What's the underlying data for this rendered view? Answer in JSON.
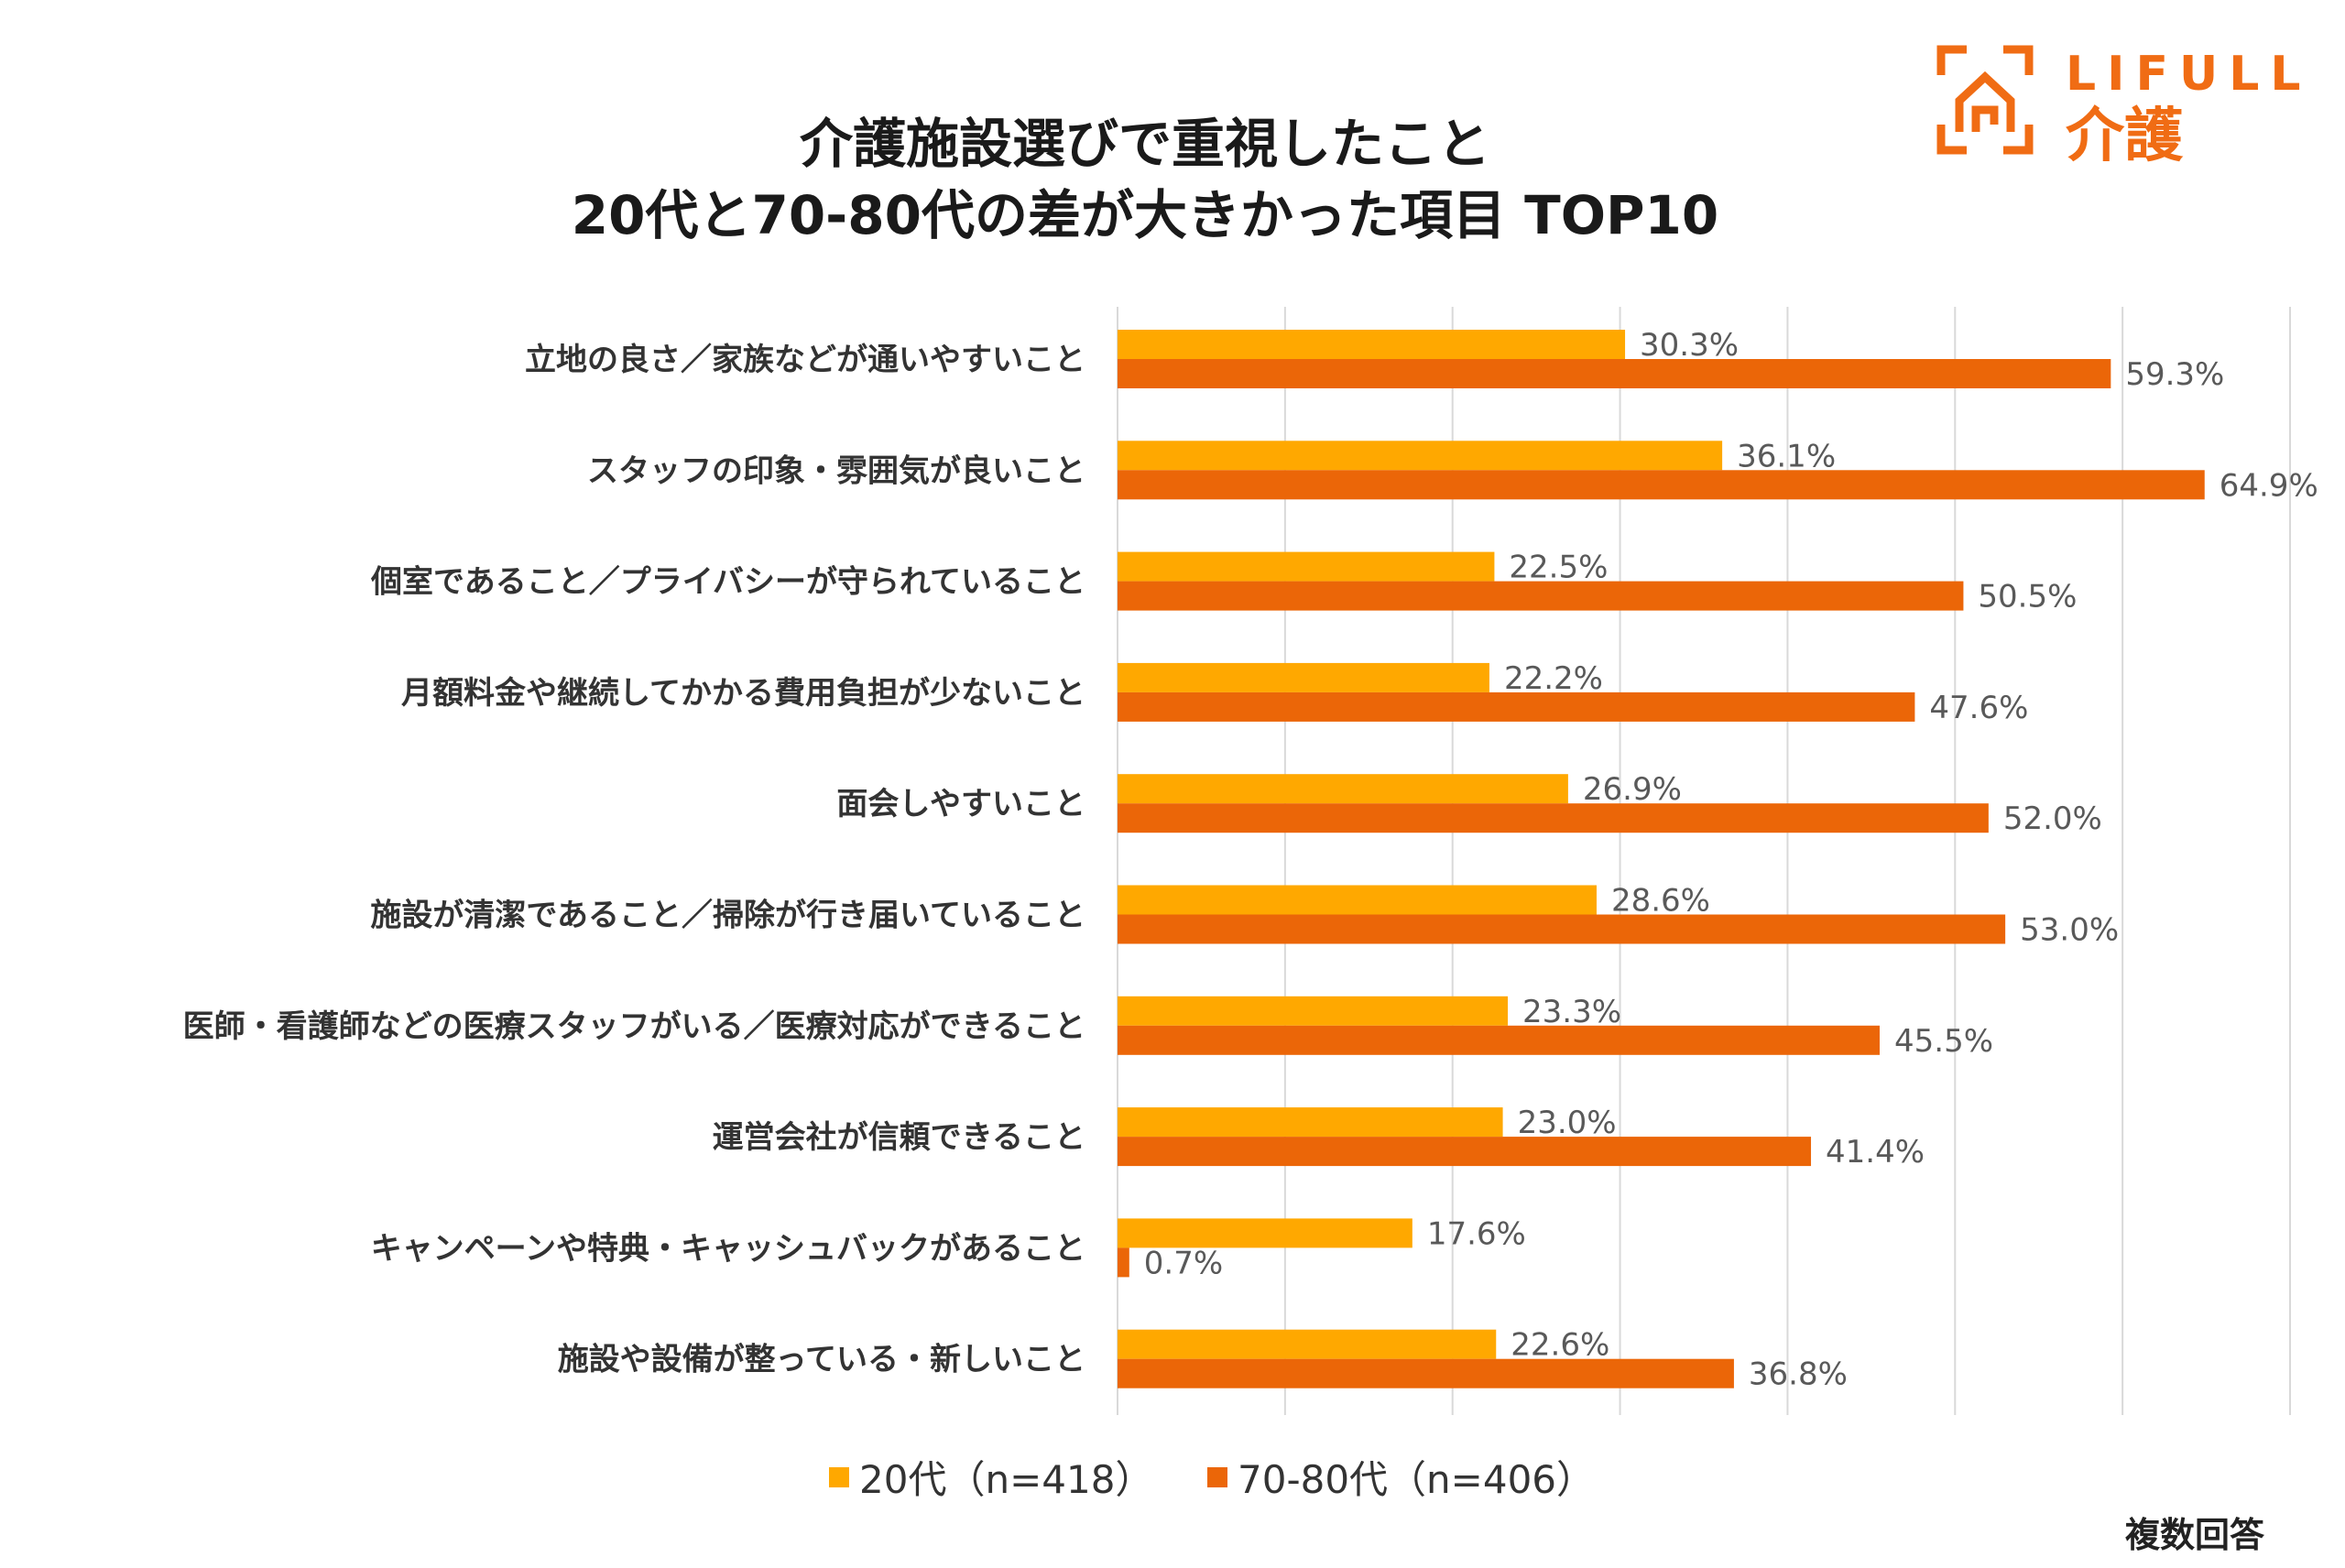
{
  "title_line1": "介護施設選びで重視したこと",
  "title_line2": "20代と70-80代の差が大きかった項目 TOP10",
  "logo": {
    "brand": "LIFULL",
    "service": "介護",
    "icon": "house-icon",
    "color": "#F06C14"
  },
  "footnote": "複数回答",
  "colors": {
    "series1": "#FFA800",
    "series2": "#EB6608",
    "grid": "#D9D9D9",
    "label": "#595959"
  },
  "chart_data": {
    "type": "bar",
    "orientation": "horizontal",
    "categories": [
      "立地の良さ／家族などが通いやすいこと",
      "スタッフの印象・雰囲気が良いこと",
      "個室であること／プライバシーが守られていること",
      "月額料金や継続してかかる費用負担が少ないこと",
      "面会しやすいこと",
      "施設が清潔であること／掃除が行き届いていること",
      "医師・看護師などの医療スタッフがいる／医療対応ができること",
      "運営会社が信頼できること",
      "キャンペーンや特典・キャッシュバックがあること",
      "施設や設備が整っている・新しいこと"
    ],
    "series": [
      {
        "name": "20代（n=418）",
        "values": [
          30.3,
          36.1,
          22.5,
          22.2,
          26.9,
          28.6,
          23.3,
          23.0,
          17.6,
          22.6
        ],
        "labels": [
          "30.3%",
          "36.1%",
          "22.5%",
          "22.2%",
          "26.9%",
          "28.6%",
          "23.3%",
          "23.0%",
          "17.6%",
          "22.6%"
        ]
      },
      {
        "name": "70-80代（n=406）",
        "values": [
          59.3,
          64.9,
          50.5,
          47.6,
          52.0,
          53.0,
          45.5,
          41.4,
          0.7,
          36.8
        ],
        "labels": [
          "59.3%",
          "64.9%",
          "50.5%",
          "47.6%",
          "52.0%",
          "53.0%",
          "45.5%",
          "41.4%",
          "0.7%",
          "36.8%"
        ]
      }
    ],
    "xlim": [
      0,
      70
    ],
    "grid": true,
    "legend_position": "bottom"
  }
}
